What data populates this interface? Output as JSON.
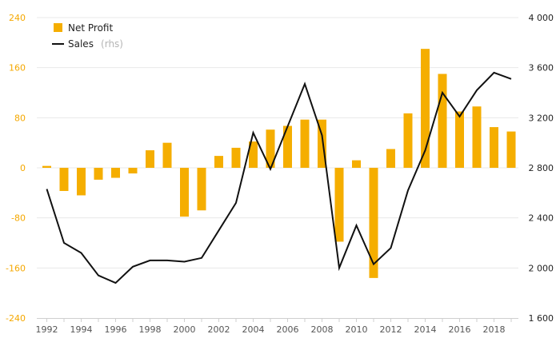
{
  "chart_data": {
    "type": "bar+line",
    "colors": {
      "bar": "#f5ae00",
      "line": "#111111",
      "left_axis": "#f5a800",
      "right_axis": "#222222",
      "grid": "#e8e8e8"
    },
    "legend": {
      "position": "top-left",
      "bar_label": "Net Profit",
      "line_label": "Sales",
      "line_note": "(rhs)"
    },
    "grid": true,
    "y_left": {
      "ylim": [
        -240,
        240
      ],
      "ticks": [
        240,
        160,
        80,
        0,
        -80,
        -160,
        -240
      ],
      "tick_labels": [
        "240",
        "160",
        "80",
        "0",
        "-80",
        "-160",
        "-240"
      ]
    },
    "y_right": {
      "ylim": [
        1600,
        4000
      ],
      "ticks": [
        4000,
        3600,
        3200,
        2800,
        2400,
        2000,
        1600
      ],
      "tick_labels": [
        "4 000",
        "3 600",
        "3 200",
        "2 800",
        "2 400",
        "2 000",
        "1 600"
      ]
    },
    "x_tick_labels": [
      "1992",
      "1994",
      "1996",
      "1998",
      "2000",
      "2002",
      "2004",
      "2006",
      "2008",
      "2010",
      "2012",
      "2014",
      "2016",
      "2018"
    ],
    "years": [
      1992,
      1993,
      1994,
      1995,
      1996,
      1997,
      1998,
      1999,
      2000,
      2001,
      2002,
      2003,
      2004,
      2005,
      2006,
      2007,
      2008,
      2009,
      2010,
      2011,
      2012,
      2013,
      2014,
      2015,
      2016,
      2017,
      2018,
      2019
    ],
    "series": [
      {
        "name": "Net Profit",
        "axis": "left",
        "type": "bar",
        "values": [
          3,
          -37,
          -44,
          -19,
          -16,
          -9,
          28,
          40,
          -78,
          -68,
          19,
          32,
          42,
          61,
          67,
          77,
          77,
          -118,
          12,
          -176,
          30,
          87,
          190,
          150,
          90,
          98,
          65,
          58
        ]
      },
      {
        "name": "Sales",
        "axis": "right",
        "type": "line",
        "values": [
          2630,
          2200,
          2120,
          1940,
          1880,
          2010,
          2060,
          2060,
          2050,
          2080,
          2300,
          2520,
          3080,
          2790,
          3130,
          3470,
          3060,
          2000,
          2340,
          2030,
          2160,
          2620,
          2940,
          3400,
          3210,
          3420,
          3560,
          3510
        ]
      }
    ]
  }
}
